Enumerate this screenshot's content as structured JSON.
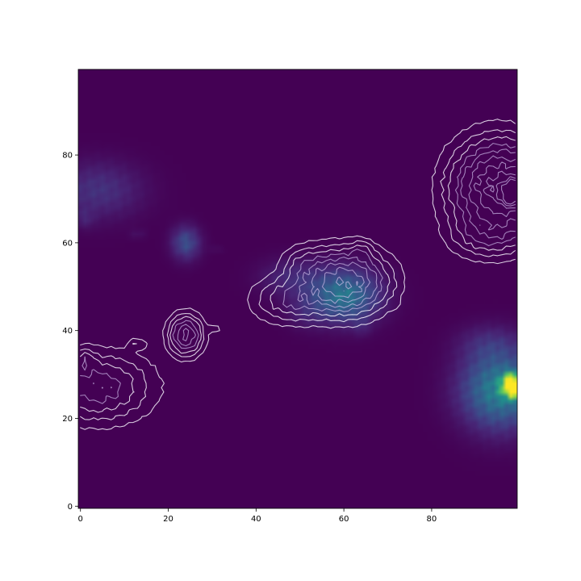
{
  "chart_data": {
    "type": "heatmap",
    "title": "",
    "xlabel": "",
    "ylabel": "",
    "colormap": "viridis",
    "background_color": "#440154",
    "overlay": "contour lines (white/lavender, semi-transparent)",
    "grid": false,
    "legend": "none",
    "xlim": [
      -0.5,
      99.5
    ],
    "ylim": [
      99.5,
      -0.5
    ],
    "y_axis_inverted": true,
    "xticks": [
      0,
      20,
      40,
      60,
      80
    ],
    "yticks": [
      0,
      20,
      40,
      60,
      80
    ],
    "xtick_labels": [
      "0",
      "20",
      "40",
      "60",
      "80"
    ],
    "ytick_labels": [
      "0",
      "20",
      "40",
      "60",
      "80"
    ],
    "blobs": [
      {
        "x": 4,
        "y": 27,
        "rx": 7,
        "ry": 4.5,
        "peak": 0.18
      },
      {
        "x": 1,
        "y": 33.5,
        "rx": 1.5,
        "ry": 1.5,
        "peak": 0.08
      },
      {
        "x": 12,
        "y": 37,
        "rx": 0.8,
        "ry": 0.8,
        "peak": 0.04
      },
      {
        "x": 14,
        "y": 37,
        "rx": 0.8,
        "ry": 0.8,
        "peak": 0.04
      },
      {
        "x": 24,
        "y": 39,
        "rx": 2.2,
        "ry": 2.6,
        "peak": 0.3
      },
      {
        "x": 31,
        "y": 40.5,
        "rx": 1.2,
        "ry": 0.5,
        "peak": 0.04
      },
      {
        "x": 48,
        "y": 47,
        "rx": 5,
        "ry": 3,
        "peak": 0.14
      },
      {
        "x": 51,
        "y": 55,
        "rx": 3,
        "ry": 2.5,
        "peak": 0.08
      },
      {
        "x": 60,
        "y": 51,
        "rx": 5.5,
        "ry": 4,
        "peak": 0.5
      },
      {
        "x": 64,
        "y": 58,
        "rx": 1.5,
        "ry": 1.5,
        "peak": 0.08
      },
      {
        "x": 72,
        "y": 46,
        "rx": 0.5,
        "ry": 0.5,
        "peak": 0.03
      },
      {
        "x": 93,
        "y": 62,
        "rx": 5,
        "ry": 3,
        "peak": 0.12
      },
      {
        "x": 95.5,
        "y": 72.5,
        "rx": 6,
        "ry": 6,
        "peak": 0.55
      },
      {
        "x": 98.5,
        "y": 71.5,
        "rx": 1.6,
        "ry": 1.8,
        "peak": 1.0
      }
    ]
  }
}
